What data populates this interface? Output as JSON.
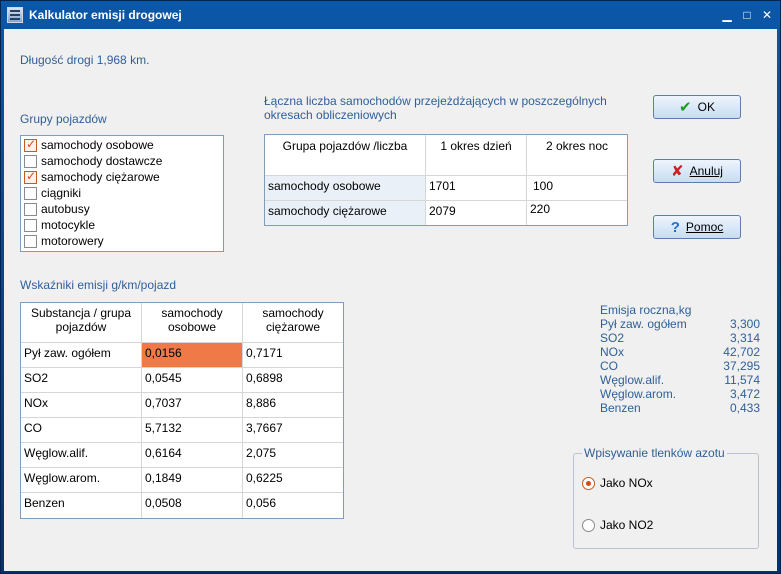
{
  "window": {
    "title": "Kalkulator emisji drogowej"
  },
  "road_length": "Długość drogi 1,968 km.",
  "vehicle_groups": {
    "label": "Grupy pojazdów",
    "items": [
      {
        "label": "samochody osobowe",
        "checked": true
      },
      {
        "label": "samochody dostawcze",
        "checked": false
      },
      {
        "label": "samochody ciężarowe",
        "checked": true
      },
      {
        "label": "ciągniki",
        "checked": false
      },
      {
        "label": "autobusy",
        "checked": false
      },
      {
        "label": "motocykle",
        "checked": false
      },
      {
        "label": "motorowery",
        "checked": false
      }
    ]
  },
  "traffic": {
    "caption": "Łączna liczba samochodów przejeżdżających w poszczególnych okresach obliczeniowych",
    "headers": [
      "Grupa pojazdów /liczba",
      "1 okres dzień",
      "2 okres noc"
    ],
    "rows": [
      [
        "samochody osobowe",
        "1701",
        "100"
      ],
      [
        "samochody ciężarowe",
        "2079",
        "220"
      ]
    ]
  },
  "buttons": {
    "ok": "OK",
    "cancel": "Anuluj",
    "help": "Pomoc"
  },
  "emission_factors": {
    "caption": "Wskaźniki  emisji  g/km/pojazd",
    "headers": [
      "Substancja / grupa pojazdów",
      "samochody osobowe",
      "samochody ciężarowe"
    ],
    "rows": [
      [
        "Pył zaw. ogółem",
        "0,0156",
        "0,7171"
      ],
      [
        "SO2",
        "0,0545",
        "0,6898"
      ],
      [
        "NOx",
        "0,7037",
        "8,886"
      ],
      [
        "CO",
        "5,7132",
        "3,7667"
      ],
      [
        "Węglow.alif.",
        "0,6164",
        "2,075"
      ],
      [
        "Węglow.arom.",
        "0,1849",
        "0,6225"
      ],
      [
        "Benzen",
        "0,0508",
        "0,056"
      ]
    ],
    "selected_color": "#f07a47"
  },
  "annual": {
    "title": "Emisja roczna,kg",
    "items": [
      {
        "name": "Pył zaw. ogółem",
        "value": "3,300"
      },
      {
        "name": "SO2",
        "value": "3,314"
      },
      {
        "name": "NOx",
        "value": "42,702"
      },
      {
        "name": "CO",
        "value": "37,295"
      },
      {
        "name": "Węglow.alif.",
        "value": "11,574"
      },
      {
        "name": "Węglow.arom.",
        "value": "3,472"
      },
      {
        "name": "Benzen",
        "value": "0,433"
      }
    ]
  },
  "nox_entry": {
    "legend": "Wpisywanie tlenków azotu",
    "options": [
      {
        "label": "Jako NOx",
        "selected": true
      },
      {
        "label": "Jako NO2",
        "selected": false
      }
    ]
  }
}
